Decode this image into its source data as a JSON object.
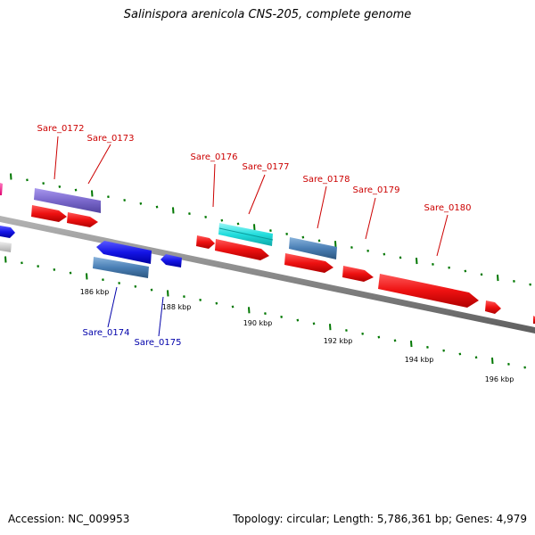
{
  "title": "Salinispora arenicola CNS-205, complete genome",
  "footer": {
    "accession": "Accession: NC_009953",
    "summary": "Topology: circular; Length: 5,786,361 bp; Genes: 4,979"
  },
  "colors": {
    "forward_label": "#cc0000",
    "reverse_label": "#0000aa",
    "backbone": "#8a8a8a",
    "tick": "#007700",
    "gene_red": "#ee1111",
    "gene_blue": "#1414e6",
    "gene_steel": "#4a7fb5",
    "gene_purple": "#7a68cc",
    "gene_cyan": "#22dddd",
    "gene_magenta": "#ff1493",
    "gene_grey": "#cccccc"
  },
  "scale_labels": [
    "186 kbp",
    "188 kbp",
    "190 kbp",
    "192 kbp",
    "194 kbp",
    "196 kbp"
  ],
  "gene_labels": {
    "forward": [
      "Sare_0172",
      "Sare_0173",
      "Sare_0176",
      "Sare_0177",
      "Sare_0178",
      "Sare_0179",
      "Sare_0180"
    ],
    "reverse": [
      "Sare_0174",
      "Sare_0175"
    ]
  }
}
